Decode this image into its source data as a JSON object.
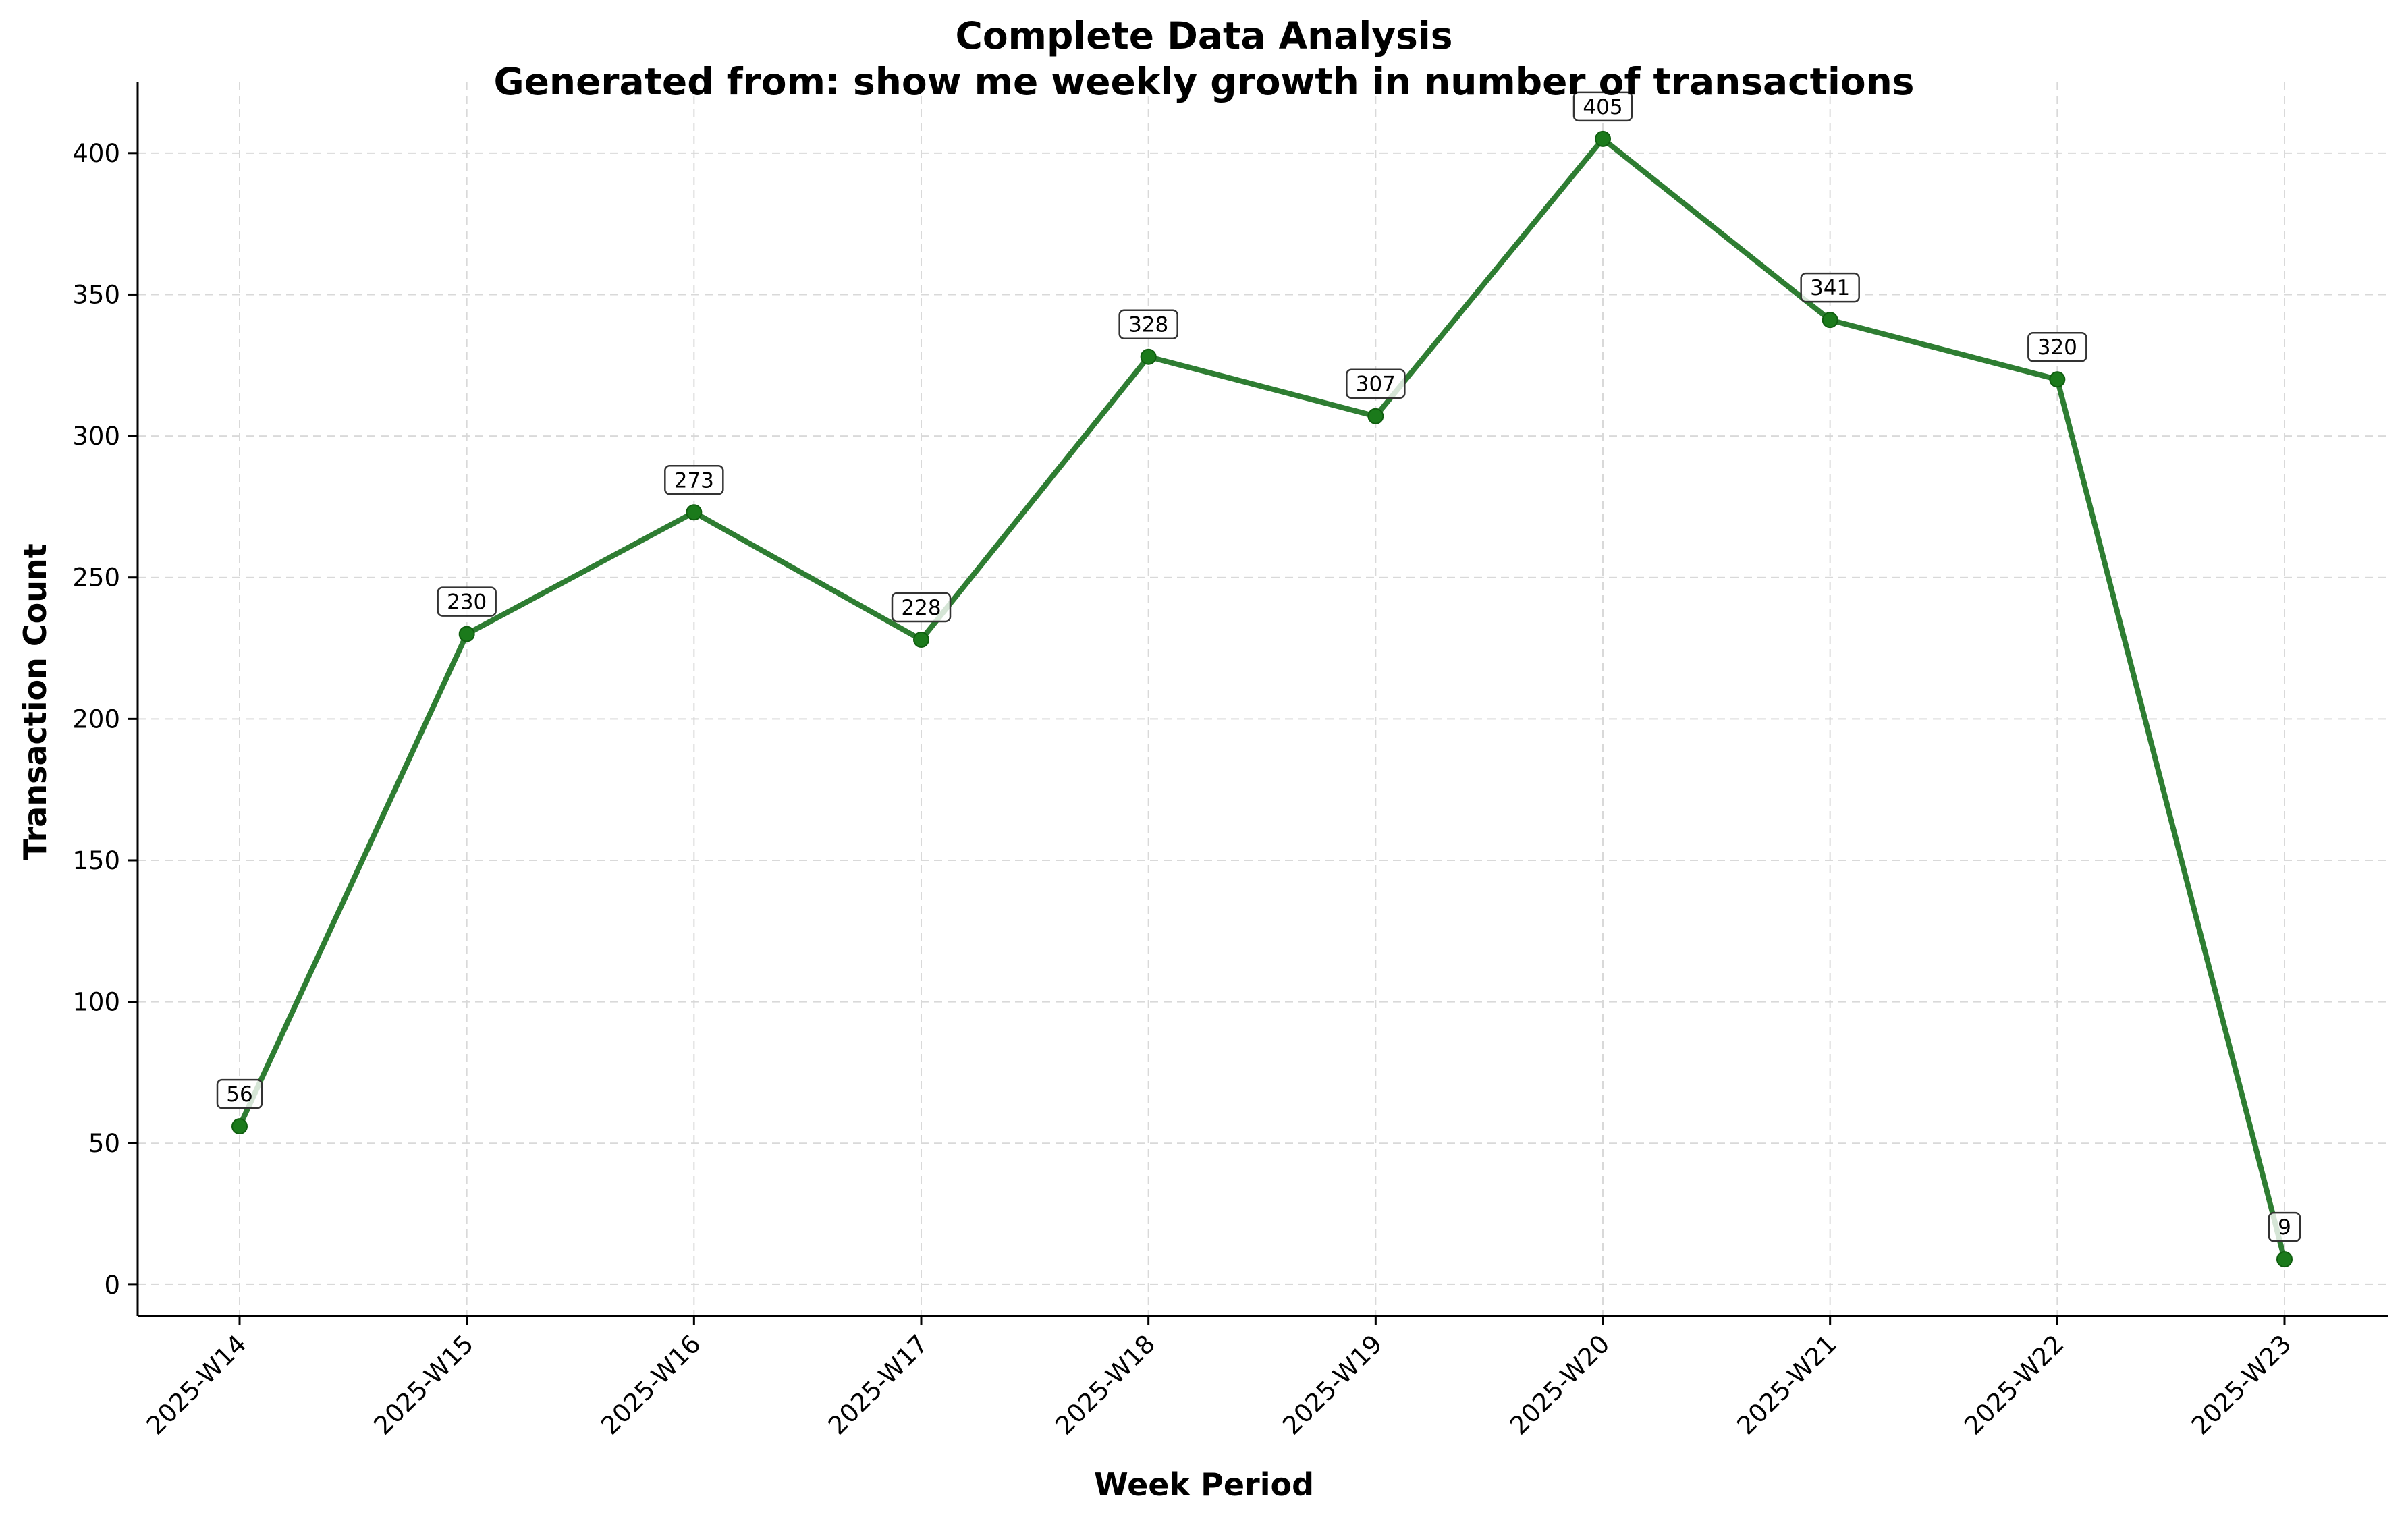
{
  "chart_data": {
    "type": "line",
    "title_line1": "Complete Data Analysis",
    "title_line2": "Generated from: show me weekly growth in number of transactions",
    "xlabel": "Week Period",
    "ylabel": "Transaction Count",
    "categories": [
      "2025-W14",
      "2025-W15",
      "2025-W16",
      "2025-W17",
      "2025-W18",
      "2025-W19",
      "2025-W20",
      "2025-W21",
      "2025-W22",
      "2025-W23"
    ],
    "values": [
      56,
      230,
      273,
      228,
      328,
      307,
      405,
      341,
      320,
      9
    ],
    "ylim": [
      -11,
      425
    ],
    "yticks": [
      0,
      50,
      100,
      150,
      200,
      250,
      300,
      350,
      400
    ],
    "grid": true,
    "line_color": "#2e7d32",
    "marker_color": "#1b7a1b"
  }
}
